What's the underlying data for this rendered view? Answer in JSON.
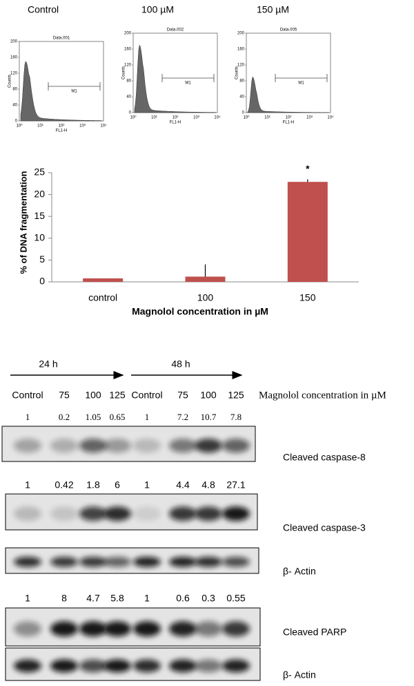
{
  "flow": {
    "panels": [
      {
        "title": "Control",
        "plot_label": "Data.001"
      },
      {
        "title": "100 µM",
        "plot_label": "Data.002"
      },
      {
        "title": "150 µM",
        "plot_label": "Data.005"
      }
    ],
    "marker": "M1",
    "y_label": "Counts",
    "x_label": "FL1-H",
    "yticks": [
      0,
      40,
      80,
      120,
      160,
      200
    ],
    "xticks": [
      "10⁰",
      "10¹",
      "10²",
      "10³",
      "10⁴"
    ]
  },
  "chart_data": {
    "type": "bar",
    "categories": [
      "control",
      "100",
      "150"
    ],
    "values": [
      0.8,
      1.2,
      22.9
    ],
    "errors": [
      0,
      2.8,
      0.6
    ],
    "color": "#c0504d",
    "ylim": [
      0,
      25
    ],
    "yticks": [
      0,
      5,
      10,
      15,
      20,
      25
    ],
    "y_label": "% of  DNA fragmentation",
    "x_label": "Magnolol concentration in µM",
    "annotations": [
      {
        "category": 2,
        "text": "*"
      }
    ]
  },
  "western": {
    "time_labels": [
      "24 h",
      "48 h"
    ],
    "lanes": [
      "Control",
      "75",
      "100",
      "125",
      "Control",
      "75",
      "100",
      "125"
    ],
    "lane_axis_label": "Magnolol concentration in µM",
    "blots": [
      {
        "name": "Cleaved caspase-8",
        "quant": [
          1,
          0.2,
          1.05,
          0.65,
          1,
          7.2,
          10.7,
          7.8
        ]
      },
      {
        "name": "Cleaved caspase-3",
        "quant": [
          1,
          0.42,
          1.8,
          6,
          1,
          4.4,
          4.8,
          27.1
        ]
      },
      {
        "name": "β- Actin"
      },
      {
        "name": "Cleaved PARP",
        "quant": [
          1,
          8,
          4.7,
          5.8,
          1,
          0.6,
          0.3,
          0.55
        ]
      },
      {
        "name": "β- Actin"
      }
    ]
  }
}
